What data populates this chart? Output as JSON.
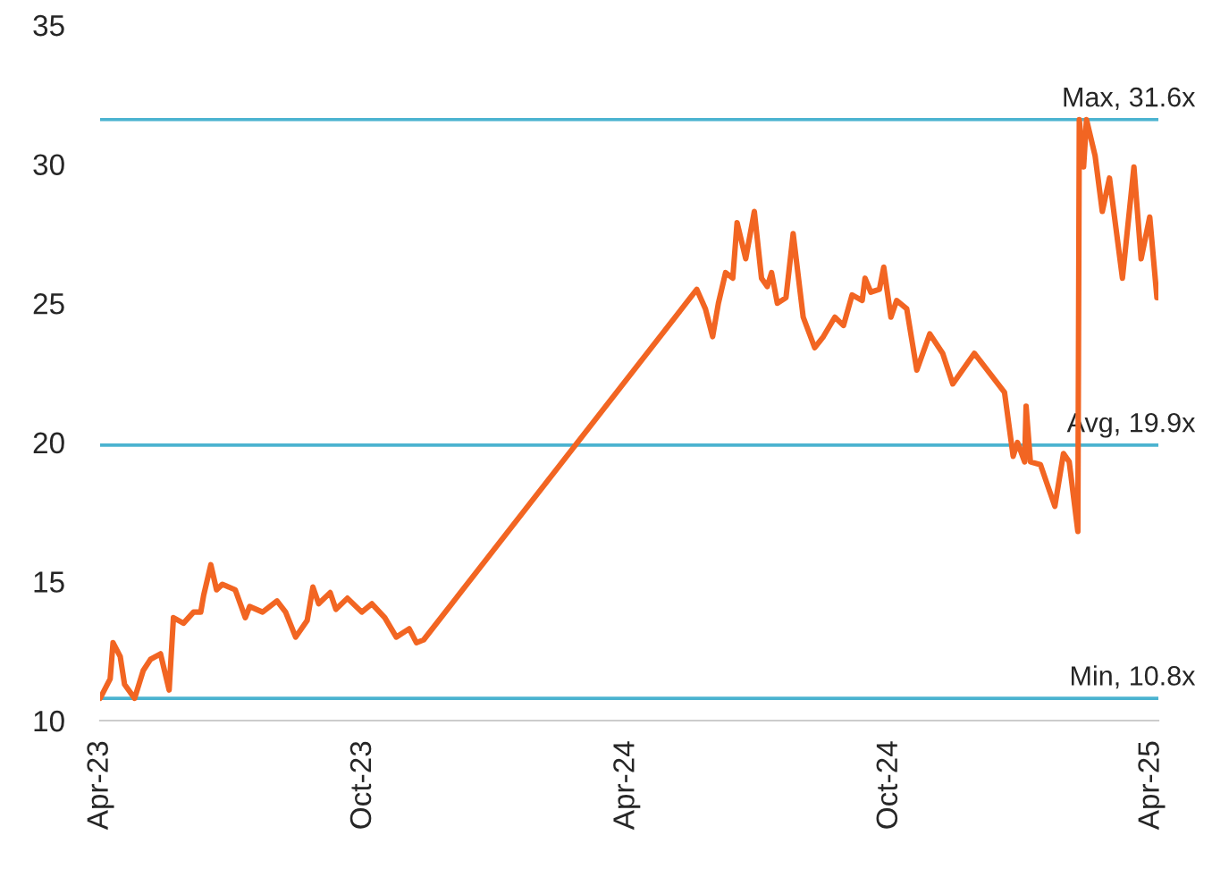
{
  "chart_data": {
    "type": "line",
    "x": [
      "2023-04-01",
      "2023-04-08",
      "2023-04-10",
      "2023-04-15",
      "2023-04-18",
      "2023-04-25",
      "2023-05-01",
      "2023-05-06",
      "2023-05-13",
      "2023-05-19",
      "2023-05-22",
      "2023-05-29",
      "2023-06-05",
      "2023-06-10",
      "2023-06-12",
      "2023-06-17",
      "2023-06-21",
      "2023-06-25",
      "2023-07-04",
      "2023-07-11",
      "2023-07-14",
      "2023-07-23",
      "2023-08-02",
      "2023-08-08",
      "2023-08-15",
      "2023-08-23",
      "2023-08-27",
      "2023-08-31",
      "2023-09-08",
      "2023-09-12",
      "2023-09-20",
      "2023-09-30",
      "2023-10-07",
      "2023-10-16",
      "2023-10-24",
      "2023-11-02",
      "2023-11-07",
      "2023-11-12",
      "2024-05-20",
      "2024-05-26",
      "2024-05-31",
      "2024-06-04",
      "2024-06-09",
      "2024-06-14",
      "2024-06-17",
      "2024-06-23",
      "2024-06-29",
      "2024-07-04",
      "2024-07-08",
      "2024-07-11",
      "2024-07-15",
      "2024-07-21",
      "2024-07-26",
      "2024-08-02",
      "2024-08-10",
      "2024-08-16",
      "2024-08-24",
      "2024-08-30",
      "2024-09-05",
      "2024-09-12",
      "2024-09-14",
      "2024-09-18",
      "2024-09-24",
      "2024-09-27",
      "2024-10-02",
      "2024-10-06",
      "2024-10-13",
      "2024-10-20",
      "2024-10-29",
      "2024-11-07",
      "2024-11-14",
      "2024-11-29",
      "2024-12-08",
      "2024-12-20",
      "2024-12-26",
      "2024-12-29",
      "2025-01-03",
      "2025-01-04",
      "2025-01-07",
      "2025-01-14",
      "2025-01-24",
      "2025-01-30",
      "2025-02-03",
      "2025-02-09",
      "2025-02-10",
      "2025-02-13",
      "2025-02-15",
      "2025-02-21",
      "2025-02-26",
      "2025-03-03",
      "2025-03-12",
      "2025-03-20",
      "2025-03-25",
      "2025-03-31",
      "2025-04-05"
    ],
    "series": [
      {
        "color": "#f26522",
        "values": [
          10.8,
          11.5,
          12.8,
          12.3,
          11.3,
          10.8,
          11.8,
          12.2,
          12.4,
          11.1,
          13.7,
          13.5,
          13.9,
          13.9,
          14.5,
          15.6,
          14.7,
          14.9,
          14.7,
          13.7,
          14.1,
          13.9,
          14.3,
          13.9,
          13.0,
          13.6,
          14.8,
          14.2,
          14.6,
          14.0,
          14.4,
          13.9,
          14.2,
          13.7,
          13.0,
          13.3,
          12.8,
          12.9,
          25.5,
          24.8,
          23.8,
          25.0,
          26.1,
          25.9,
          27.9,
          26.6,
          28.3,
          25.9,
          25.6,
          26.1,
          25.0,
          25.2,
          27.5,
          24.5,
          23.4,
          23.8,
          24.5,
          24.2,
          25.3,
          25.1,
          25.9,
          25.4,
          25.5,
          26.3,
          24.5,
          25.1,
          24.8,
          22.6,
          23.9,
          23.2,
          22.1,
          23.2,
          22.6,
          21.8,
          19.5,
          20.0,
          19.3,
          21.3,
          19.3,
          19.2,
          17.7,
          19.6,
          19.3,
          16.8,
          31.6,
          29.9,
          31.6,
          30.3,
          28.3,
          29.5,
          25.9,
          29.9,
          26.6,
          28.1,
          25.2
        ]
      }
    ],
    "xlim": [
      "2023-04-01",
      "2025-04-06"
    ],
    "xticks": [
      {
        "value": "2023-04-01",
        "label": "Apr-23"
      },
      {
        "value": "2023-10-01",
        "label": "Oct-23"
      },
      {
        "value": "2024-04-01",
        "label": "Apr-24"
      },
      {
        "value": "2024-10-01",
        "label": "Oct-24"
      },
      {
        "value": "2025-04-01",
        "label": "Apr-25"
      }
    ],
    "ylim": [
      10,
      35
    ],
    "yticks": [
      10,
      15,
      20,
      25,
      30,
      35
    ],
    "ref_lines": [
      {
        "axis": "y",
        "value": 31.6,
        "label": "Max, 31.6x",
        "color": "#4bb3d0"
      },
      {
        "axis": "y",
        "value": 19.9,
        "label": "Avg, 19.9x",
        "color": "#4bb3d0"
      },
      {
        "axis": "y",
        "value": 10.8,
        "label": "Min, 10.8x",
        "color": "#4bb3d0"
      }
    ],
    "grid": false,
    "legend": false,
    "marker": "none",
    "line_style": "solid"
  }
}
